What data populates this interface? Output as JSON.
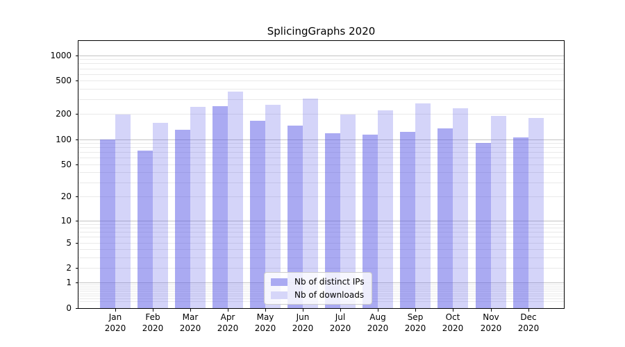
{
  "chart_data": {
    "type": "bar",
    "title": "SplicingGraphs 2020",
    "categories": [
      "Jan",
      "Feb",
      "Mar",
      "Apr",
      "May",
      "Jun",
      "Jul",
      "Aug",
      "Sep",
      "Oct",
      "Nov",
      "Dec"
    ],
    "x_year": "2020",
    "series": [
      {
        "name": "Nb of distinct IPs",
        "color": "rgba(85,85,230,0.5)",
        "legend_color": "#aaaaf2",
        "values": [
          100,
          73,
          129,
          248,
          165,
          147,
          118,
          114,
          122,
          136,
          90,
          105
        ]
      },
      {
        "name": "Nb of downloads",
        "color": "rgba(85,85,230,0.25)",
        "legend_color": "#d6d6f9",
        "values": [
          198,
          156,
          244,
          368,
          258,
          304,
          196,
          222,
          268,
          236,
          189,
          181
        ]
      }
    ],
    "y_ticks": [
      0,
      1,
      2,
      5,
      10,
      20,
      50,
      100,
      200,
      500,
      1000
    ],
    "y_scale": "log1p",
    "ylim": [
      0,
      1500
    ],
    "grid": true,
    "legend_position": "lower-center",
    "colors": {
      "major_grid": "#c3c3c3",
      "minor_grid": "#e9e9e9",
      "axis": "#000000"
    }
  }
}
